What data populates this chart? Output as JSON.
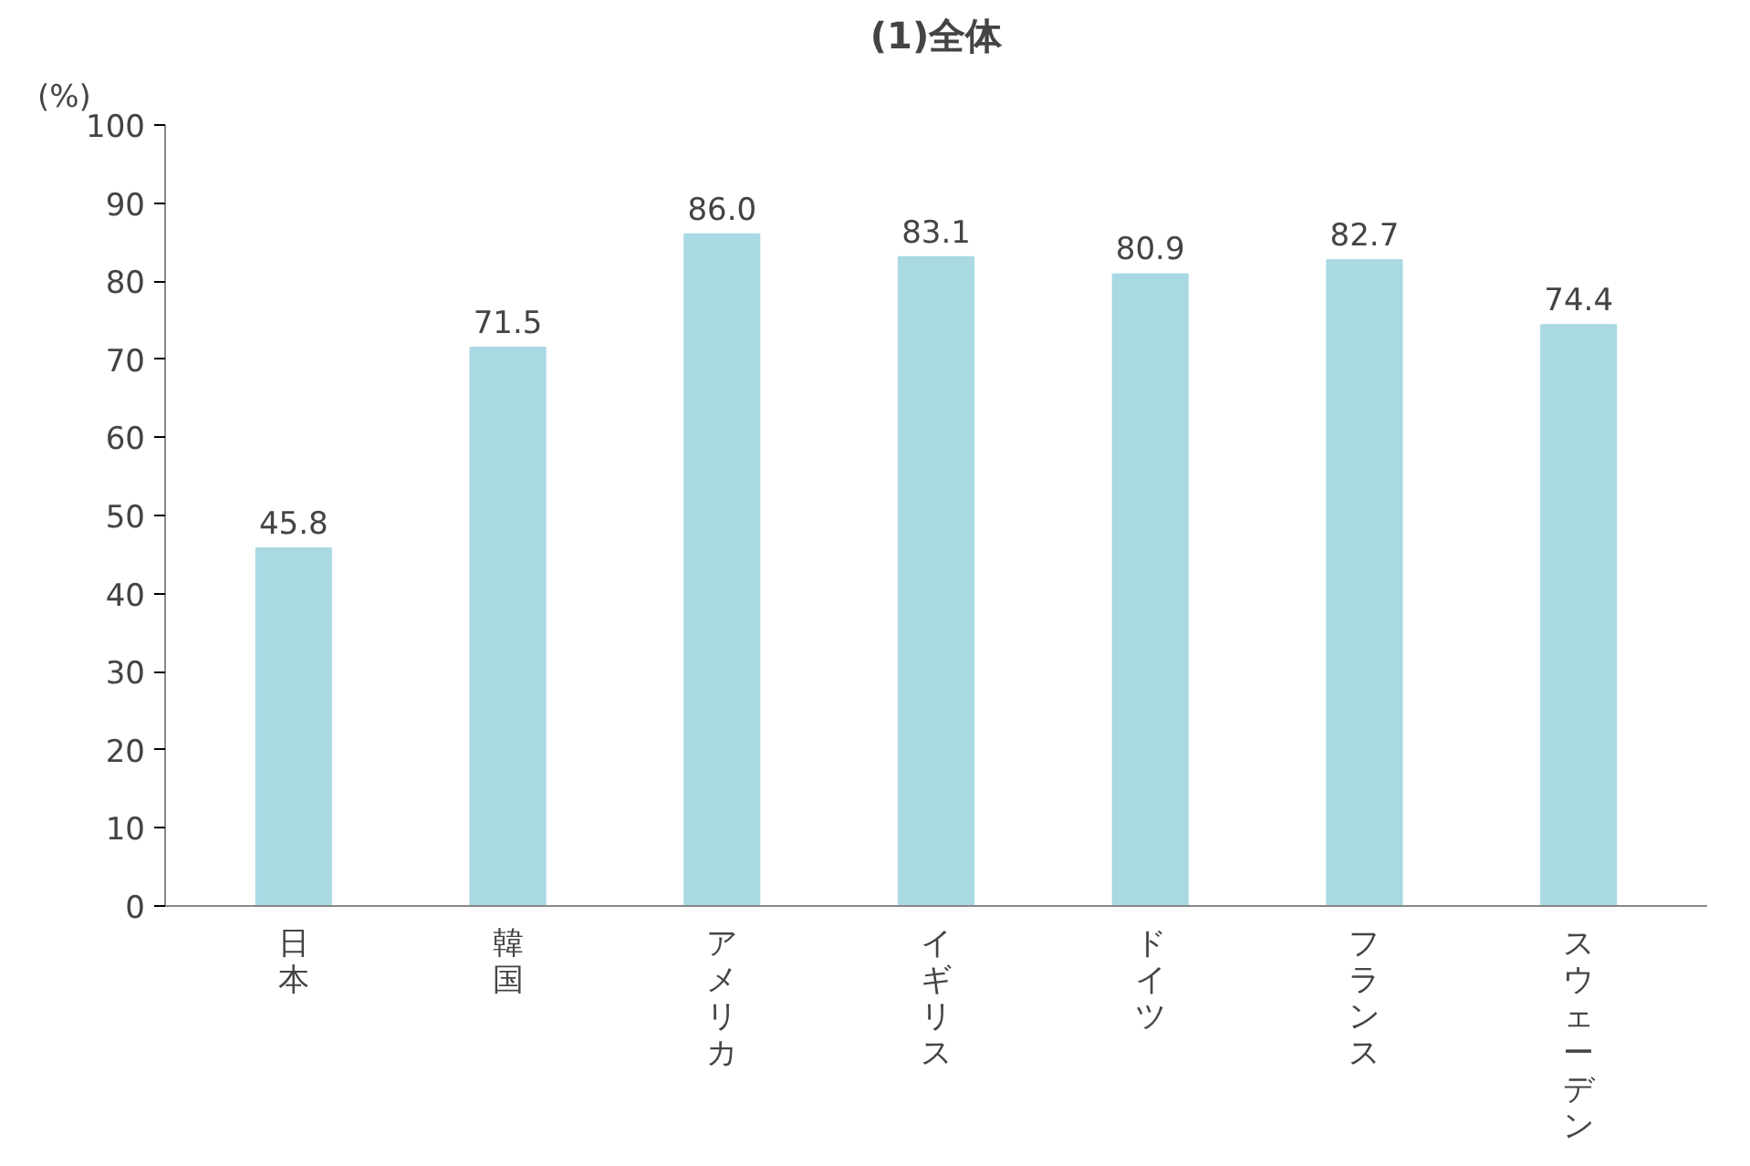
{
  "chart_data": {
    "type": "bar",
    "title": "(1)全体",
    "ylabel": "(%)",
    "categories": [
      "日本",
      "韓国",
      "アメリカ",
      "イギリス",
      "ドイツ",
      "フランス",
      "スウェーデン"
    ],
    "values": [
      45.8,
      71.5,
      86.0,
      83.1,
      80.9,
      82.7,
      74.4
    ],
    "value_labels": [
      "45.8",
      "71.5",
      "86.0",
      "83.1",
      "80.9",
      "82.7",
      "74.4"
    ],
    "color": "#a9d9e3",
    "ylim": [
      0,
      100
    ],
    "yticks": [
      0,
      10,
      20,
      30,
      40,
      50,
      60,
      70,
      80,
      90,
      100
    ],
    "grid": false
  }
}
